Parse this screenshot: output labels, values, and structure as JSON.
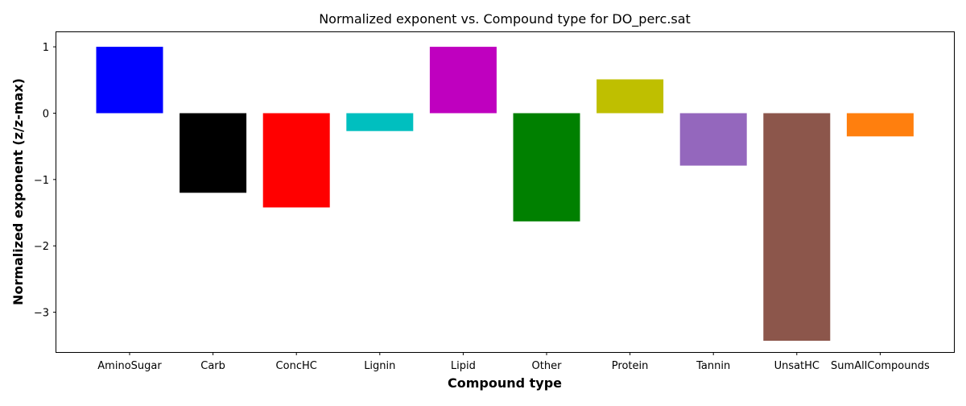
{
  "chart_data": {
    "type": "bar",
    "title": "Normalized exponent vs. Compound type for DO_perc.sat",
    "xlabel": "Compound type",
    "ylabel": "Normalized exponent (z/z-max)",
    "categories": [
      "AminoSugar",
      "Carb",
      "ConcHC",
      "Lignin",
      "Lipid",
      "Other",
      "Protein",
      "Tannin",
      "UnsatHC",
      "SumAllCompounds"
    ],
    "values": [
      1.0,
      -1.2,
      -1.42,
      -0.27,
      1.0,
      -1.63,
      0.51,
      -0.79,
      -3.43,
      -0.35
    ],
    "colors": [
      "#0000ff",
      "#000000",
      "#ff0000",
      "#00bfbf",
      "#bf00bf",
      "#008000",
      "#bfbf00",
      "#9467bd",
      "#8c564b",
      "#ff7f0e"
    ],
    "yticks": [
      1,
      0,
      -1,
      -2,
      -3
    ],
    "ytick_labels": [
      "1",
      "0",
      "−1",
      "−2",
      "−3"
    ],
    "ylim": [
      -3.6,
      1.22
    ],
    "grid": false,
    "legend": "none"
  }
}
